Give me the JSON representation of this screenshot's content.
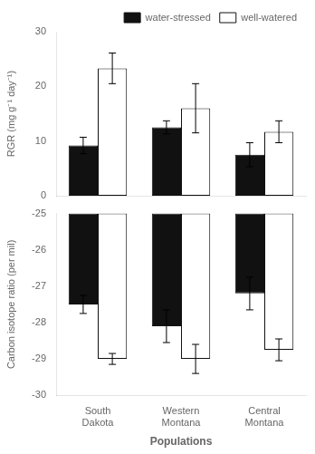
{
  "chart_data": [
    {
      "type": "bar",
      "categories": [
        "South\nDakota",
        "Western\nMontana",
        "Central\nMontana"
      ],
      "series": [
        {
          "name": "water-stressed",
          "color": "#111111",
          "values": [
            9.2,
            12.5,
            7.5
          ],
          "errors": [
            1.5,
            1.2,
            2.2
          ]
        },
        {
          "name": "well-watered",
          "color": "#ffffff",
          "values": [
            23.3,
            16.0,
            11.7
          ],
          "errors": [
            2.8,
            4.5,
            2.0
          ]
        }
      ],
      "y_label": "RGR (mg g⁻¹ day⁻¹)",
      "ylim": [
        0,
        30
      ],
      "yticks": [
        0,
        10,
        20,
        30
      ],
      "grid": false,
      "legend": "upper right",
      "tick_labels": "y"
    },
    {
      "type": "bar",
      "categories": [
        "South\nDakota",
        "Western\nMontana",
        "Central\nMontana"
      ],
      "series": [
        {
          "color": "#111111",
          "values": [
            -27.5,
            -28.1,
            -27.2
          ],
          "errors": [
            0.25,
            0.45,
            0.45
          ]
        },
        {
          "color": "#ffffff",
          "values": [
            -29.0,
            -29.0,
            -28.75
          ],
          "errors": [
            0.15,
            0.4,
            0.3
          ]
        }
      ],
      "x_label": "Populations",
      "y_label": "Carbon isotope ratio (per mil)",
      "ylim": [
        -30,
        -25
      ],
      "yticks": [
        -30,
        -29,
        -28,
        -27,
        -26,
        -25
      ],
      "grid": false
    }
  ]
}
